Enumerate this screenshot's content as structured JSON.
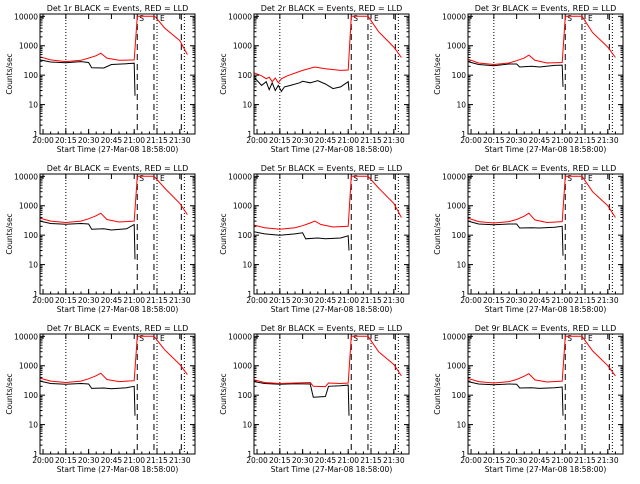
{
  "figure": {
    "xlabel": "Start Time (27-Mar-08 18:58:00)",
    "ylabel": "Counts/sec",
    "xticks": [
      "20:00",
      "20:15",
      "20:30",
      "20:45",
      "21:00",
      "21:15",
      "21:30"
    ],
    "yticks": [
      {
        "value": 1,
        "label": "1"
      },
      {
        "value": 10,
        "label": "10"
      },
      {
        "value": 100,
        "label": "100"
      },
      {
        "value": 1000,
        "label": "1000"
      },
      {
        "value": 10000,
        "label": "10000"
      }
    ],
    "marker_S": "S",
    "marker_E": "E",
    "colors": {
      "events": "#000000",
      "lld": "#ff0000",
      "axes": "#000000"
    }
  },
  "chart_data": [
    {
      "type": "line",
      "title": "Det 1r BLACK = Events, RED = LLD",
      "x_range": [
        "19:58",
        "21:40"
      ],
      "y_scale": "log",
      "ylim": [
        1,
        12000
      ],
      "series": [
        {
          "name": "Events",
          "color": "black",
          "x": [
            "19:58",
            "20:05",
            "20:15",
            "20:25",
            "20:30",
            "20:32",
            "20:40",
            "20:45",
            "20:55",
            "21:00",
            "21:00.5"
          ],
          "values": [
            330,
            280,
            265,
            290,
            270,
            180,
            175,
            230,
            245,
            255,
            20
          ]
        },
        {
          "name": "LLD",
          "color": "red",
          "x": [
            "19:58",
            "20:05",
            "20:15",
            "20:25",
            "20:30",
            "20:35",
            "20:38",
            "20:42",
            "20:50",
            "21:00",
            "21:02",
            "21:13",
            "21:14",
            "21:20",
            "21:30",
            "21:35"
          ],
          "values": [
            420,
            330,
            290,
            320,
            380,
            460,
            560,
            380,
            320,
            330,
            10000,
            10000,
            9500,
            4000,
            1500,
            500
          ]
        }
      ],
      "vlines_dotted": [
        "20:15",
        "21:15",
        "21:33"
      ],
      "vlines_dashed": [
        "21:02",
        "21:13",
        "21:31"
      ]
    },
    {
      "type": "line",
      "title": "Det 2r BLACK = Events, RED = LLD",
      "x_range": [
        "19:58",
        "21:40"
      ],
      "y_scale": "log",
      "ylim": [
        1,
        12000
      ],
      "series": [
        {
          "name": "Events",
          "color": "black",
          "x": [
            "19:58",
            "20:03",
            "20:06",
            "20:08",
            "20:10",
            "20:12",
            "20:14",
            "20:16",
            "20:18",
            "20:22",
            "20:28",
            "20:30",
            "20:35",
            "20:40",
            "20:45",
            "20:50",
            "20:55",
            "21:00",
            "21:00.5"
          ],
          "values": [
            85,
            45,
            60,
            32,
            55,
            30,
            45,
            28,
            40,
            45,
            55,
            62,
            55,
            65,
            50,
            35,
            40,
            60,
            30
          ]
        },
        {
          "name": "LLD",
          "color": "red",
          "x": [
            "19:58",
            "20:03",
            "20:06",
            "20:08",
            "20:10",
            "20:12",
            "20:14",
            "20:16",
            "20:20",
            "20:30",
            "20:38",
            "20:45",
            "20:55",
            "21:00",
            "21:02",
            "21:13",
            "21:20",
            "21:30",
            "21:35"
          ],
          "values": [
            120,
            95,
            75,
            85,
            60,
            80,
            55,
            75,
            95,
            145,
            190,
            165,
            145,
            150,
            10000,
            10000,
            3000,
            900,
            400
          ]
        }
      ],
      "vlines_dotted": [
        "20:15",
        "21:15",
        "21:33"
      ],
      "vlines_dashed": [
        "21:02",
        "21:13",
        "21:31"
      ]
    },
    {
      "type": "line",
      "title": "Det 3r BLACK = Events, RED = LLD",
      "x_range": [
        "19:58",
        "21:40"
      ],
      "y_scale": "log",
      "ylim": [
        1,
        12000
      ],
      "series": [
        {
          "name": "Events",
          "color": "black",
          "x": [
            "19:58",
            "20:05",
            "20:15",
            "20:25",
            "20:30",
            "20:32",
            "20:40",
            "20:45",
            "20:55",
            "21:00",
            "21:00.5"
          ],
          "values": [
            290,
            230,
            210,
            240,
            240,
            190,
            200,
            190,
            215,
            220,
            40
          ]
        },
        {
          "name": "LLD",
          "color": "red",
          "x": [
            "19:58",
            "20:05",
            "20:15",
            "20:25",
            "20:30",
            "20:35",
            "20:38",
            "20:42",
            "20:50",
            "21:00",
            "21:02",
            "21:13",
            "21:20",
            "21:30",
            "21:35"
          ],
          "values": [
            350,
            260,
            230,
            260,
            310,
            380,
            480,
            320,
            260,
            270,
            10000,
            10000,
            2800,
            900,
            400
          ]
        }
      ],
      "vlines_dotted": [
        "20:15",
        "21:15",
        "21:33"
      ],
      "vlines_dashed": [
        "21:02",
        "21:13",
        "21:31"
      ]
    },
    {
      "type": "line",
      "title": "Det 4r BLACK = Events, RED = LLD",
      "x_range": [
        "19:58",
        "21:40"
      ],
      "y_scale": "log",
      "ylim": [
        1,
        12000
      ],
      "series": [
        {
          "name": "Events",
          "color": "black",
          "x": [
            "19:58",
            "20:05",
            "20:15",
            "20:25",
            "20:30",
            "20:32",
            "20:40",
            "20:45",
            "20:55",
            "21:00",
            "21:00.5"
          ],
          "values": [
            300,
            250,
            235,
            250,
            240,
            160,
            165,
            150,
            165,
            230,
            15
          ]
        },
        {
          "name": "LLD",
          "color": "red",
          "x": [
            "19:58",
            "20:05",
            "20:15",
            "20:25",
            "20:30",
            "20:35",
            "20:38",
            "20:42",
            "20:50",
            "21:00",
            "21:02",
            "21:13",
            "21:20",
            "21:30",
            "21:35"
          ],
          "values": [
            380,
            300,
            270,
            300,
            360,
            460,
            560,
            340,
            280,
            300,
            10000,
            10000,
            4000,
            1200,
            500
          ]
        }
      ],
      "vlines_dotted": [
        "20:15",
        "21:15",
        "21:33"
      ],
      "vlines_dashed": [
        "21:02",
        "21:13",
        "21:31"
      ]
    },
    {
      "type": "line",
      "title": "Det 5r BLACK = Events, RED = LLD",
      "x_range": [
        "19:58",
        "21:40"
      ],
      "y_scale": "log",
      "ylim": [
        1,
        12000
      ],
      "series": [
        {
          "name": "Events",
          "color": "black",
          "x": [
            "19:58",
            "20:05",
            "20:15",
            "20:25",
            "20:30",
            "20:32",
            "20:40",
            "20:45",
            "20:55",
            "21:00",
            "21:00.5"
          ],
          "values": [
            130,
            110,
            100,
            110,
            120,
            75,
            80,
            75,
            80,
            95,
            30
          ]
        },
        {
          "name": "LLD",
          "color": "red",
          "x": [
            "19:58",
            "20:05",
            "20:15",
            "20:25",
            "20:30",
            "20:35",
            "20:38",
            "20:42",
            "20:50",
            "21:00",
            "21:02",
            "21:13",
            "21:20",
            "21:30",
            "21:35"
          ],
          "values": [
            220,
            180,
            160,
            180,
            210,
            260,
            300,
            230,
            190,
            200,
            10000,
            10000,
            4000,
            1200,
            400
          ]
        }
      ],
      "vlines_dotted": [
        "20:15",
        "21:15",
        "21:33"
      ],
      "vlines_dashed": [
        "21:02",
        "21:13",
        "21:31"
      ]
    },
    {
      "type": "line",
      "title": "Det 6r BLACK = Events, RED = LLD",
      "x_range": [
        "19:58",
        "21:40"
      ],
      "y_scale": "log",
      "ylim": [
        1,
        12000
      ],
      "series": [
        {
          "name": "Events",
          "color": "black",
          "x": [
            "19:58",
            "20:05",
            "20:15",
            "20:25",
            "20:30",
            "20:32",
            "20:40",
            "20:45",
            "20:55",
            "21:00",
            "21:00.5"
          ],
          "values": [
            300,
            240,
            225,
            240,
            240,
            175,
            180,
            175,
            185,
            200,
            20
          ]
        },
        {
          "name": "LLD",
          "color": "red",
          "x": [
            "19:58",
            "20:05",
            "20:15",
            "20:25",
            "20:30",
            "20:35",
            "20:38",
            "20:42",
            "20:50",
            "21:00",
            "21:02",
            "21:13",
            "21:20",
            "21:30",
            "21:35"
          ],
          "values": [
            380,
            290,
            260,
            290,
            340,
            440,
            560,
            330,
            270,
            290,
            10000,
            10000,
            3000,
            1000,
            400
          ]
        }
      ],
      "vlines_dotted": [
        "20:15",
        "21:15",
        "21:33"
      ],
      "vlines_dashed": [
        "21:02",
        "21:13",
        "21:31"
      ]
    },
    {
      "type": "line",
      "title": "Det 7r BLACK = Events, RED = LLD",
      "x_range": [
        "19:58",
        "21:40"
      ],
      "y_scale": "log",
      "ylim": [
        1,
        12000
      ],
      "series": [
        {
          "name": "Events",
          "color": "black",
          "x": [
            "19:58",
            "20:05",
            "20:15",
            "20:25",
            "20:30",
            "20:32",
            "20:40",
            "20:45",
            "20:55",
            "21:00",
            "21:00.5"
          ],
          "values": [
            300,
            250,
            235,
            250,
            240,
            170,
            175,
            165,
            180,
            200,
            20
          ]
        },
        {
          "name": "LLD",
          "color": "red",
          "x": [
            "19:58",
            "20:05",
            "20:15",
            "20:25",
            "20:30",
            "20:35",
            "20:38",
            "20:42",
            "20:50",
            "21:00",
            "21:02",
            "21:13",
            "21:20",
            "21:30",
            "21:35"
          ],
          "values": [
            380,
            300,
            270,
            300,
            360,
            460,
            560,
            340,
            290,
            310,
            10000,
            10000,
            3500,
            1100,
            500
          ]
        }
      ],
      "vlines_dotted": [
        "20:15",
        "21:15",
        "21:33"
      ],
      "vlines_dashed": [
        "21:02",
        "21:13",
        "21:31"
      ]
    },
    {
      "type": "line",
      "title": "Det 8r BLACK = Events, RED = LLD",
      "x_range": [
        "19:58",
        "21:40"
      ],
      "y_scale": "log",
      "ylim": [
        1,
        12000
      ],
      "series": [
        {
          "name": "Events",
          "color": "black",
          "x": [
            "19:58",
            "20:05",
            "20:15",
            "20:25",
            "20:35",
            "20:37",
            "20:45",
            "20:47",
            "20:55",
            "21:00",
            "21:00.5"
          ],
          "values": [
            290,
            250,
            235,
            245,
            240,
            85,
            90,
            200,
            210,
            220,
            20
          ]
        },
        {
          "name": "LLD",
          "color": "red",
          "x": [
            "19:58",
            "20:05",
            "20:15",
            "20:25",
            "20:35",
            "20:37",
            "20:45",
            "20:47",
            "20:55",
            "21:00",
            "21:02",
            "21:13",
            "21:20",
            "21:30",
            "21:35"
          ],
          "values": [
            330,
            270,
            250,
            260,
            270,
            200,
            195,
            260,
            250,
            260,
            10000,
            10000,
            3000,
            1100,
            450
          ]
        }
      ],
      "vlines_dotted": [
        "20:15",
        "21:15",
        "21:33"
      ],
      "vlines_dashed": [
        "21:02",
        "21:13",
        "21:31"
      ]
    },
    {
      "type": "line",
      "title": "Det 9r BLACK = Events, RED = LLD",
      "x_range": [
        "19:58",
        "21:40"
      ],
      "y_scale": "log",
      "ylim": [
        1,
        12000
      ],
      "series": [
        {
          "name": "Events",
          "color": "black",
          "x": [
            "19:58",
            "20:05",
            "20:15",
            "20:25",
            "20:30",
            "20:32",
            "20:40",
            "20:45",
            "20:55",
            "21:00",
            "21:00.5"
          ],
          "values": [
            290,
            240,
            225,
            240,
            235,
            175,
            180,
            170,
            180,
            190,
            20
          ]
        },
        {
          "name": "LLD",
          "color": "red",
          "x": [
            "19:58",
            "20:05",
            "20:15",
            "20:25",
            "20:30",
            "20:35",
            "20:38",
            "20:42",
            "20:50",
            "21:00",
            "21:02",
            "21:13",
            "21:20",
            "21:30",
            "21:35"
          ],
          "values": [
            370,
            290,
            260,
            290,
            340,
            440,
            540,
            330,
            280,
            300,
            10000,
            10000,
            3200,
            1000,
            450
          ]
        }
      ],
      "vlines_dotted": [
        "20:15",
        "21:15",
        "21:33"
      ],
      "vlines_dashed": [
        "21:02",
        "21:13",
        "21:31"
      ]
    }
  ]
}
